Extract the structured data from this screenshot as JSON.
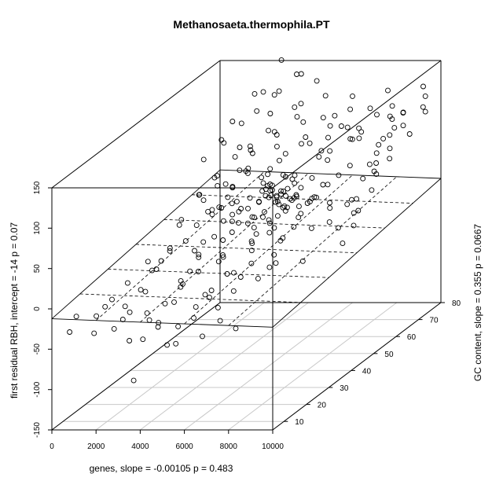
{
  "chart_data": {
    "type": "scatter",
    "title": "Methanosaeta.thermophila.PT",
    "xlabel": "genes, slope =  -0.00105 p =  0.483",
    "ylabel": "GC content, slope =  0.355 p =  0.0667",
    "zlabel": "first residual RBH, intercept =  -14 p =  0.07",
    "xlim": [
      0,
      10000
    ],
    "ylim": [
      5,
      80
    ],
    "zlim": [
      -150,
      150
    ],
    "xticks": [
      "0",
      "2000",
      "4000",
      "6000",
      "8000",
      "10000"
    ],
    "yticks": [
      "10",
      "20",
      "30",
      "40",
      "50",
      "60",
      "70",
      "80"
    ],
    "zticks": [
      "-150",
      "-100",
      "-50",
      "0",
      "50",
      "100",
      "150"
    ],
    "regression_plane": {
      "intercept": -14,
      "x_slope": -0.00105,
      "y_slope": 0.355
    },
    "points": [
      [
        2600,
        55,
        20
      ],
      [
        2800,
        58,
        40
      ],
      [
        3000,
        52,
        10
      ],
      [
        3200,
        60,
        55
      ],
      [
        3400,
        54,
        30
      ],
      [
        3600,
        57,
        15
      ],
      [
        3800,
        61,
        45
      ],
      [
        4000,
        53,
        5
      ],
      [
        4200,
        56,
        25
      ],
      [
        4400,
        59,
        60
      ],
      [
        4600,
        55,
        35
      ],
      [
        4800,
        62,
        20
      ],
      [
        5000,
        54,
        50
      ],
      [
        5200,
        58,
        10
      ],
      [
        5400,
        60,
        40
      ],
      [
        5600,
        53,
        65
      ],
      [
        5800,
        57,
        30
      ],
      [
        6000,
        61,
        15
      ],
      [
        6200,
        55,
        45
      ],
      [
        6400,
        59,
        25
      ],
      [
        6600,
        56,
        55
      ],
      [
        6800,
        62,
        5
      ],
      [
        7000,
        54,
        35
      ],
      [
        7200,
        58,
        20
      ],
      [
        7400,
        60,
        50
      ],
      [
        2700,
        48,
        30
      ],
      [
        3300,
        50,
        60
      ],
      [
        3900,
        47,
        20
      ],
      [
        4500,
        49,
        45
      ],
      [
        5100,
        51,
        70
      ],
      [
        5700,
        48,
        10
      ],
      [
        6300,
        50,
        40
      ],
      [
        6900,
        47,
        25
      ],
      [
        7500,
        52,
        55
      ],
      [
        8100,
        49,
        15
      ],
      [
        2900,
        64,
        50
      ],
      [
        3500,
        66,
        20
      ],
      [
        4100,
        65,
        75
      ],
      [
        4700,
        67,
        35
      ],
      [
        5300,
        63,
        5
      ],
      [
        5900,
        66,
        60
      ],
      [
        6500,
        64,
        30
      ],
      [
        7100,
        68,
        45
      ],
      [
        7700,
        65,
        10
      ],
      [
        8300,
        67,
        40
      ],
      [
        2500,
        44,
        -10
      ],
      [
        3100,
        42,
        5
      ],
      [
        3700,
        45,
        -20
      ],
      [
        4300,
        43,
        15
      ],
      [
        4900,
        46,
        -5
      ],
      [
        5500,
        41,
        25
      ],
      [
        6100,
        44,
        -15
      ],
      [
        6700,
        42,
        10
      ],
      [
        7300,
        45,
        -25
      ],
      [
        7900,
        43,
        20
      ],
      [
        2400,
        70,
        60
      ],
      [
        3000,
        72,
        80
      ],
      [
        3600,
        71,
        45
      ],
      [
        4200,
        73,
        95
      ],
      [
        4800,
        69,
        70
      ],
      [
        5400,
        72,
        55
      ],
      [
        6000,
        70,
        90
      ],
      [
        6600,
        74,
        65
      ],
      [
        7200,
        71,
        85
      ],
      [
        7800,
        73,
        50
      ],
      [
        2200,
        60,
        90
      ],
      [
        2800,
        62,
        110
      ],
      [
        3400,
        61,
        75
      ],
      [
        4000,
        63,
        120
      ],
      [
        4600,
        60,
        100
      ],
      [
        5200,
        62,
        130
      ],
      [
        5800,
        61,
        95
      ],
      [
        6400,
        63,
        115
      ],
      [
        7000,
        60,
        80
      ],
      [
        7600,
        62,
        105
      ],
      [
        1800,
        55,
        80
      ],
      [
        2400,
        57,
        100
      ],
      [
        3000,
        56,
        125
      ],
      [
        3600,
        58,
        90
      ],
      [
        4200,
        55,
        140
      ],
      [
        4800,
        57,
        110
      ],
      [
        5400,
        56,
        85
      ],
      [
        6000,
        58,
        120
      ],
      [
        6600,
        55,
        100
      ],
      [
        7200,
        57,
        75
      ],
      [
        1600,
        38,
        -10
      ],
      [
        2200,
        36,
        10
      ],
      [
        2800,
        39,
        -25
      ],
      [
        3400,
        37,
        0
      ],
      [
        4000,
        40,
        -15
      ],
      [
        4600,
        36,
        20
      ],
      [
        5200,
        38,
        -30
      ],
      [
        5800,
        37,
        5
      ],
      [
        6400,
        39,
        -20
      ],
      [
        7000,
        38,
        15
      ],
      [
        2000,
        30,
        -5
      ],
      [
        2600,
        32,
        15
      ],
      [
        3200,
        31,
        -20
      ],
      [
        3800,
        33,
        5
      ],
      [
        4400,
        30,
        -35
      ],
      [
        5000,
        32,
        10
      ],
      [
        5600,
        31,
        -10
      ],
      [
        6200,
        33,
        25
      ],
      [
        6800,
        30,
        -15
      ],
      [
        7400,
        32,
        0
      ],
      [
        1400,
        25,
        -10
      ],
      [
        2000,
        27,
        -25
      ],
      [
        2600,
        26,
        5
      ],
      [
        3200,
        28,
        -40
      ],
      [
        3800,
        25,
        -15
      ],
      [
        4400,
        27,
        0
      ],
      [
        5000,
        26,
        -30
      ],
      [
        5600,
        28,
        -5
      ],
      [
        6200,
        25,
        -20
      ],
      [
        6800,
        27,
        10
      ],
      [
        1200,
        20,
        -20
      ],
      [
        1800,
        22,
        -40
      ],
      [
        2400,
        21,
        -10
      ],
      [
        3000,
        23,
        -55
      ],
      [
        3600,
        20,
        -25
      ],
      [
        4200,
        22,
        -5
      ],
      [
        4800,
        21,
        -45
      ],
      [
        5400,
        23,
        -15
      ],
      [
        6000,
        20,
        -30
      ],
      [
        6600,
        22,
        -60
      ],
      [
        1000,
        15,
        -30
      ],
      [
        1600,
        17,
        -50
      ],
      [
        2200,
        16,
        -20
      ],
      [
        2800,
        18,
        -65
      ],
      [
        3400,
        15,
        -35
      ],
      [
        4000,
        17,
        -70
      ],
      [
        4600,
        16,
        -45
      ],
      [
        5200,
        18,
        -25
      ],
      [
        5800,
        15,
        -55
      ],
      [
        6400,
        17,
        -40
      ],
      [
        8500,
        55,
        30
      ],
      [
        8700,
        58,
        50
      ],
      [
        8900,
        52,
        20
      ],
      [
        9100,
        60,
        65
      ],
      [
        9300,
        56,
        40
      ],
      [
        8600,
        48,
        10
      ],
      [
        8800,
        50,
        35
      ],
      [
        9000,
        46,
        -5
      ],
      [
        9200,
        51,
        25
      ],
      [
        9400,
        47,
        15
      ],
      [
        8400,
        64,
        55
      ],
      [
        8600,
        66,
        75
      ],
      [
        8800,
        63,
        45
      ],
      [
        9000,
        67,
        85
      ],
      [
        9200,
        65,
        60
      ],
      [
        8200,
        72,
        70
      ],
      [
        8400,
        74,
        90
      ],
      [
        8600,
        71,
        60
      ],
      [
        8800,
        75,
        80
      ],
      [
        9000,
        73,
        100
      ],
      [
        5000,
        55,
        160
      ],
      [
        5500,
        60,
        175
      ],
      [
        4500,
        62,
        150
      ],
      [
        6000,
        57,
        145
      ],
      [
        5200,
        65,
        165
      ],
      [
        3800,
        58,
        155
      ],
      [
        6400,
        64,
        140
      ],
      [
        4800,
        52,
        170
      ],
      [
        5600,
        68,
        150
      ],
      [
        4200,
        66,
        180
      ],
      [
        2300,
        50,
        40
      ],
      [
        2500,
        46,
        55
      ],
      [
        2700,
        53,
        25
      ],
      [
        2900,
        49,
        70
      ],
      [
        3100,
        55,
        45
      ],
      [
        3300,
        44,
        35
      ],
      [
        3500,
        51,
        20
      ],
      [
        3700,
        47,
        50
      ],
      [
        3900,
        54,
        65
      ],
      [
        4100,
        48,
        30
      ],
      [
        4300,
        52,
        15
      ],
      [
        4500,
        45,
        40
      ],
      [
        4700,
        53,
        55
      ],
      [
        4900,
        47,
        25
      ],
      [
        5100,
        55,
        35
      ],
      [
        5300,
        49,
        60
      ],
      [
        5500,
        53,
        45
      ],
      [
        5700,
        46,
        20
      ],
      [
        5900,
        52,
        50
      ],
      [
        6100,
        48,
        35
      ],
      [
        6300,
        54,
        15
      ],
      [
        6500,
        49,
        45
      ],
      [
        6700,
        53,
        30
      ],
      [
        6900,
        46,
        55
      ],
      [
        7100,
        51,
        40
      ],
      [
        4500,
        58,
        35
      ],
      [
        4600,
        57,
        45
      ],
      [
        4700,
        59,
        25
      ],
      [
        4800,
        56,
        40
      ],
      [
        4900,
        60,
        30
      ],
      [
        5000,
        57,
        20
      ],
      [
        5100,
        59,
        50
      ],
      [
        5200,
        56,
        35
      ],
      [
        5300,
        60,
        45
      ],
      [
        5400,
        58,
        25
      ],
      [
        4400,
        54,
        30
      ],
      [
        4550,
        55,
        15
      ],
      [
        4650,
        53,
        45
      ],
      [
        4750,
        55,
        5
      ],
      [
        4850,
        54,
        35
      ],
      [
        4950,
        56,
        25
      ],
      [
        5050,
        53,
        40
      ],
      [
        5150,
        55,
        10
      ],
      [
        5250,
        54,
        30
      ],
      [
        5350,
        56,
        20
      ],
      [
        3000,
        40,
        30
      ],
      [
        3500,
        42,
        45
      ],
      [
        4000,
        38,
        20
      ],
      [
        4500,
        41,
        55
      ],
      [
        5000,
        39,
        35
      ],
      [
        5500,
        42,
        15
      ],
      [
        6000,
        40,
        40
      ],
      [
        6500,
        38,
        25
      ],
      [
        7000,
        41,
        50
      ],
      [
        7500,
        39,
        30
      ],
      [
        2000,
        45,
        0
      ],
      [
        1500,
        48,
        20
      ],
      [
        1000,
        52,
        5
      ],
      [
        1300,
        58,
        30
      ],
      [
        1700,
        62,
        45
      ],
      [
        2100,
        66,
        60
      ],
      [
        1900,
        70,
        35
      ],
      [
        1500,
        74,
        55
      ],
      [
        1100,
        68,
        20
      ],
      [
        800,
        40,
        -15
      ],
      [
        600,
        10,
        -20
      ],
      [
        1200,
        12,
        -45
      ],
      [
        1800,
        11,
        -10
      ],
      [
        2400,
        13,
        -30
      ],
      [
        3000,
        10,
        -50
      ],
      [
        3600,
        12,
        -20
      ],
      [
        4200,
        11,
        -35
      ],
      [
        4800,
        13,
        -60
      ],
      [
        500,
        8,
        -35
      ],
      [
        3400,
        8,
        -95
      ],
      [
        9500,
        78,
        110
      ],
      [
        9700,
        76,
        95
      ],
      [
        9300,
        79,
        120
      ],
      [
        9600,
        70,
        80
      ],
      [
        9800,
        74,
        105
      ],
      [
        7900,
        78,
        85
      ],
      [
        8100,
        77,
        100
      ],
      [
        7700,
        79,
        115
      ],
      [
        8300,
        76,
        75
      ],
      [
        8500,
        78,
        90
      ],
      [
        6800,
        76,
        70
      ],
      [
        7000,
        78,
        95
      ],
      [
        6600,
        77,
        60
      ],
      [
        7200,
        79,
        85
      ],
      [
        6400,
        75,
        100
      ],
      [
        5800,
        77,
        75
      ],
      [
        6000,
        79,
        55
      ],
      [
        5600,
        76,
        90
      ],
      [
        6200,
        78,
        110
      ],
      [
        5400,
        75,
        65
      ]
    ]
  }
}
